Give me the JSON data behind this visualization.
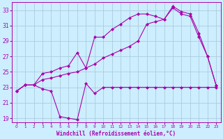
{
  "xlabel": "Windchill (Refroidissement éolien,°C)",
  "bg_color": "#cceeff",
  "line_color": "#aa00aa",
  "grid_color": "#aaccdd",
  "xlim": [
    -0.5,
    23.5
  ],
  "ylim": [
    18.5,
    34.0
  ],
  "yticks": [
    19,
    21,
    23,
    25,
    27,
    29,
    31,
    33
  ],
  "xticks": [
    0,
    1,
    2,
    3,
    4,
    5,
    6,
    7,
    8,
    9,
    10,
    11,
    12,
    13,
    14,
    15,
    16,
    17,
    18,
    19,
    20,
    21,
    22,
    23
  ],
  "line1_x": [
    0,
    1,
    2,
    3,
    4,
    5,
    6,
    7,
    8,
    9,
    10,
    11,
    12,
    13,
    14,
    15,
    16,
    17,
    18,
    19,
    20,
    21,
    22,
    23
  ],
  "line1_y": [
    22.5,
    23.3,
    23.3,
    22.8,
    22.5,
    19.2,
    19.0,
    18.8,
    23.5,
    22.2,
    23.0,
    23.0,
    23.0,
    23.0,
    23.0,
    23.0,
    23.0,
    23.0,
    23.0,
    23.0,
    23.0,
    23.0,
    23.0,
    23.0
  ],
  "line2_x": [
    0,
    1,
    2,
    3,
    4,
    5,
    6,
    7,
    8,
    9,
    10,
    11,
    12,
    13,
    14,
    15,
    16,
    17,
    18,
    19,
    20,
    21,
    22,
    23
  ],
  "line2_y": [
    22.5,
    23.3,
    23.3,
    24.0,
    24.2,
    24.5,
    24.8,
    25.0,
    25.5,
    26.0,
    26.8,
    27.3,
    27.8,
    28.3,
    29.0,
    31.2,
    31.5,
    31.8,
    33.3,
    32.5,
    32.2,
    29.5,
    27.0,
    23.2
  ],
  "line3_x": [
    0,
    1,
    2,
    3,
    4,
    5,
    6,
    7,
    8,
    9,
    10,
    11,
    12,
    13,
    14,
    15,
    16,
    17,
    18,
    19,
    20,
    21,
    22,
    23
  ],
  "line3_y": [
    22.5,
    23.3,
    23.3,
    24.8,
    25.0,
    25.5,
    25.8,
    27.5,
    25.5,
    29.5,
    29.5,
    30.5,
    31.2,
    32.0,
    32.5,
    32.5,
    32.2,
    31.8,
    33.5,
    32.8,
    32.5,
    30.0,
    27.0,
    23.2
  ]
}
